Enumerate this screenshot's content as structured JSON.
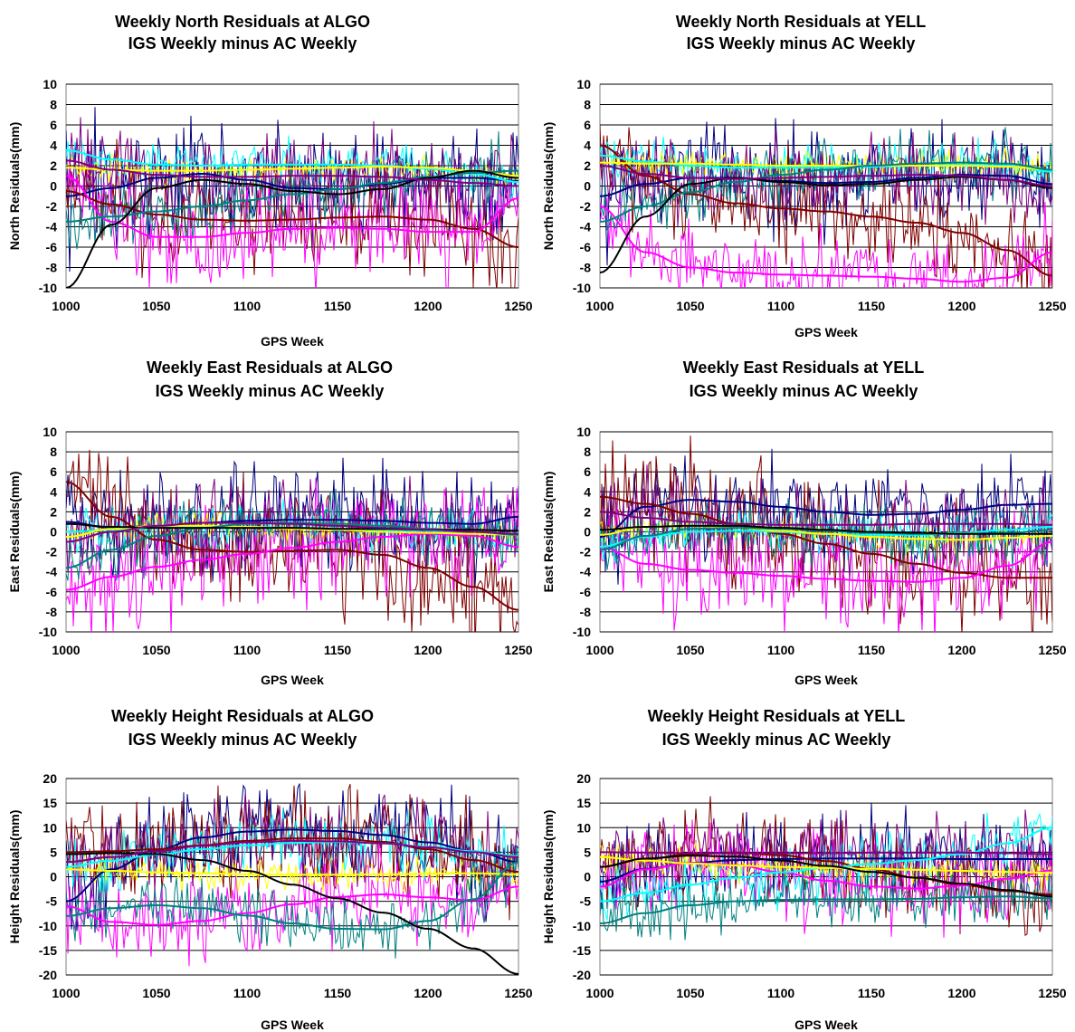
{
  "series_colors": [
    "#000080",
    "#800000",
    "#ff00ff",
    "#00ffff",
    "#ffff00",
    "#008080",
    "#000000",
    "#800080"
  ],
  "chart_data": [
    {
      "type": "line",
      "title_lines": [
        "Weekly North Residuals at ALGO",
        "IGS Weekly minus AC Weekly"
      ],
      "xlabel": "GPS Week",
      "ylabel": "North Residuals(mm)",
      "xlim": [
        1000,
        1250
      ],
      "ylim": [
        -10,
        10
      ],
      "xticks": [
        1000,
        1050,
        1100,
        1150,
        1200,
        1250
      ],
      "yticks": [
        -10,
        -8,
        -6,
        -4,
        -2,
        0,
        2,
        4,
        6,
        8,
        10
      ],
      "grid": "horizontal",
      "x": [
        1000,
        1025,
        1050,
        1075,
        1100,
        1125,
        1150,
        1175,
        1200,
        1225,
        1250
      ],
      "series": [
        {
          "color": "#000080",
          "values": [
            -1.0,
            -0.2,
            0.8,
            1.2,
            0.6,
            -0.2,
            -0.3,
            0.2,
            0.8,
            0.8,
            0.5
          ],
          "noise": 3.0
        },
        {
          "color": "#800000",
          "values": [
            -0.5,
            -1.8,
            -2.8,
            -3.3,
            -3.4,
            -3.3,
            -3.1,
            -3.0,
            -3.3,
            -4.2,
            -6.0
          ],
          "noise": 2.5
        },
        {
          "color": "#ff00ff",
          "values": [
            1.0,
            -3.5,
            -5.0,
            -5.0,
            -4.6,
            -4.2,
            -4.1,
            -4.2,
            -4.5,
            -4.5,
            -1.2
          ],
          "noise": 2.5
        },
        {
          "color": "#00ffff",
          "values": [
            3.5,
            2.6,
            2.1,
            2.0,
            2.1,
            2.1,
            2.1,
            2.0,
            1.7,
            1.2,
            0.4
          ],
          "noise": 1.0
        },
        {
          "color": "#ffff00",
          "values": [
            1.8,
            1.6,
            1.5,
            1.5,
            1.6,
            1.7,
            1.8,
            1.9,
            1.8,
            1.5,
            1.0
          ],
          "noise": 0.6
        },
        {
          "color": "#008080",
          "values": [
            -3.5,
            -3.0,
            -2.5,
            -2.0,
            -1.4,
            -0.8,
            -0.3,
            0.3,
            0.9,
            1.3,
            1.5
          ],
          "noise": 1.5
        },
        {
          "color": "#000000",
          "values": [
            -10.0,
            -3.8,
            -0.2,
            0.6,
            0.2,
            -0.5,
            -0.8,
            -0.3,
            0.8,
            1.5,
            0.8
          ],
          "noise": 0
        },
        {
          "color": "#800080",
          "values": [
            2.5,
            1.6,
            1.1,
            0.9,
            0.9,
            1.0,
            1.0,
            0.9,
            0.6,
            0.3,
            0.0
          ],
          "noise": 2.0
        }
      ]
    },
    {
      "type": "line",
      "title_lines": [
        "Weekly North Residuals at YELL",
        "IGS Weekly minus AC Weekly"
      ],
      "xlabel": "GPS Week",
      "ylabel": "North Residuals(mm)",
      "xlim": [
        1000,
        1250
      ],
      "ylim": [
        -10,
        10
      ],
      "xticks": [
        1000,
        1050,
        1100,
        1150,
        1200,
        1250
      ],
      "yticks": [
        -10,
        -8,
        -6,
        -4,
        -2,
        0,
        2,
        4,
        6,
        8,
        10
      ],
      "grid": "horizontal",
      "x": [
        1000,
        1025,
        1050,
        1075,
        1100,
        1125,
        1150,
        1175,
        1200,
        1225,
        1250
      ],
      "series": [
        {
          "color": "#000080",
          "values": [
            -1.0,
            0.2,
            0.8,
            0.8,
            0.5,
            0.3,
            0.4,
            0.8,
            1.1,
            1.0,
            0.2
          ],
          "noise": 2.5
        },
        {
          "color": "#800000",
          "values": [
            4.0,
            1.0,
            -0.8,
            -1.7,
            -2.2,
            -2.5,
            -3.0,
            -3.6,
            -4.6,
            -6.3,
            -8.8
          ],
          "noise": 2.5
        },
        {
          "color": "#ff00ff",
          "values": [
            -2.0,
            -6.5,
            -8.0,
            -8.5,
            -8.7,
            -8.8,
            -8.9,
            -9.1,
            -9.4,
            -9.0,
            -6.5
          ],
          "noise": 2.0
        },
        {
          "color": "#00ffff",
          "values": [
            3.0,
            2.4,
            2.0,
            1.8,
            1.8,
            1.8,
            1.9,
            2.0,
            2.1,
            2.0,
            1.4
          ],
          "noise": 1.0
        },
        {
          "color": "#ffff00",
          "values": [
            2.3,
            2.2,
            2.2,
            2.1,
            2.0,
            2.0,
            2.0,
            2.0,
            2.0,
            1.9,
            1.6
          ],
          "noise": 0.7
        },
        {
          "color": "#008080",
          "values": [
            -3.5,
            -2.0,
            -0.6,
            0.4,
            1.1,
            1.6,
            2.0,
            2.2,
            2.3,
            2.2,
            1.6
          ],
          "noise": 1.5
        },
        {
          "color": "#000000",
          "values": [
            -8.5,
            -3.0,
            0.2,
            0.8,
            0.4,
            0.1,
            0.2,
            0.6,
            0.9,
            0.6,
            -0.2
          ],
          "noise": 0
        },
        {
          "color": "#800080",
          "values": [
            2.0,
            1.2,
            0.8,
            0.7,
            0.8,
            0.9,
            1.0,
            1.1,
            1.0,
            0.6,
            0.0
          ],
          "noise": 2.0
        }
      ]
    },
    {
      "type": "line",
      "title_lines": [
        "Weekly East Residuals at ALGO",
        "IGS Weekly minus AC Weekly"
      ],
      "xlabel": "GPS Week",
      "ylabel": "East Residuals(mm)",
      "xlim": [
        1000,
        1250
      ],
      "ylim": [
        -10,
        10
      ],
      "xticks": [
        1000,
        1050,
        1100,
        1150,
        1200,
        1250
      ],
      "yticks": [
        -10,
        -8,
        -6,
        -4,
        -2,
        0,
        2,
        4,
        6,
        8,
        10
      ],
      "grid": "horizontal",
      "x": [
        1000,
        1025,
        1050,
        1075,
        1100,
        1125,
        1150,
        1175,
        1200,
        1225,
        1250
      ],
      "series": [
        {
          "color": "#000080",
          "values": [
            1.0,
            0.4,
            0.6,
            0.9,
            1.1,
            1.2,
            1.2,
            1.1,
            0.9,
            0.8,
            1.5
          ],
          "noise": 2.5
        },
        {
          "color": "#800000",
          "values": [
            5.0,
            1.5,
            -0.8,
            -1.8,
            -2.0,
            -1.9,
            -1.8,
            -2.3,
            -3.6,
            -5.5,
            -7.8
          ],
          "noise": 3.0
        },
        {
          "color": "#ff00ff",
          "values": [
            -5.8,
            -4.5,
            -3.5,
            -2.8,
            -2.2,
            -1.6,
            -1.0,
            -0.5,
            -0.2,
            -0.4,
            -1.5
          ],
          "noise": 2.5
        },
        {
          "color": "#00ffff",
          "values": [
            0.0,
            0.2,
            0.4,
            0.5,
            0.5,
            0.4,
            0.3,
            0.2,
            0.1,
            0.0,
            -0.2
          ],
          "noise": 1.0
        },
        {
          "color": "#ffff00",
          "values": [
            -0.5,
            0.3,
            0.6,
            0.6,
            0.5,
            0.3,
            0.2,
            0.0,
            -0.1,
            -0.2,
            -0.3
          ],
          "noise": 0.6
        },
        {
          "color": "#008080",
          "values": [
            -3.6,
            -1.8,
            -0.4,
            0.4,
            0.8,
            0.9,
            0.8,
            0.6,
            0.3,
            0.0,
            -0.3
          ],
          "noise": 1.5
        },
        {
          "color": "#000000",
          "values": [
            0.8,
            0.5,
            0.4,
            0.4,
            0.4,
            0.4,
            0.3,
            0.3,
            0.2,
            0.2,
            0.1
          ],
          "noise": 0
        },
        {
          "color": "#800080",
          "values": [
            -1.0,
            0.0,
            0.6,
            0.9,
            0.9,
            0.8,
            0.6,
            0.4,
            0.2,
            0.0,
            -0.2
          ],
          "noise": 2.0
        }
      ]
    },
    {
      "type": "line",
      "title_lines": [
        "Weekly East Residuals at YELL",
        "IGS Weekly minus AC Weekly"
      ],
      "xlabel": "GPS Week",
      "ylabel": "East Residuals(mm)",
      "xlim": [
        1000,
        1250
      ],
      "ylim": [
        -10,
        10
      ],
      "xticks": [
        1000,
        1050,
        1100,
        1150,
        1200,
        1250
      ],
      "yticks": [
        -10,
        -8,
        -6,
        -4,
        -2,
        0,
        2,
        4,
        6,
        8,
        10
      ],
      "grid": "horizontal",
      "x": [
        1000,
        1025,
        1050,
        1075,
        1100,
        1125,
        1150,
        1175,
        1200,
        1225,
        1250
      ],
      "series": [
        {
          "color": "#000080",
          "values": [
            -0.5,
            2.5,
            3.2,
            3.0,
            2.5,
            2.0,
            1.7,
            1.8,
            2.2,
            2.7,
            2.8
          ],
          "noise": 2.5
        },
        {
          "color": "#800000",
          "values": [
            3.5,
            2.8,
            1.8,
            0.8,
            -0.2,
            -1.2,
            -2.2,
            -3.2,
            -4.1,
            -4.6,
            -4.6
          ],
          "noise": 3.0
        },
        {
          "color": "#ff00ff",
          "values": [
            -1.5,
            -3.2,
            -3.8,
            -4.1,
            -4.4,
            -4.7,
            -4.9,
            -5.0,
            -4.6,
            -3.4,
            -1.0
          ],
          "noise": 2.5
        },
        {
          "color": "#00ffff",
          "values": [
            -1.5,
            -0.5,
            0.0,
            0.1,
            0.0,
            -0.2,
            -0.3,
            -0.3,
            -0.1,
            0.2,
            0.5
          ],
          "noise": 1.0
        },
        {
          "color": "#ffff00",
          "values": [
            -0.3,
            0.5,
            0.6,
            0.4,
            0.1,
            -0.2,
            -0.5,
            -0.7,
            -0.8,
            -0.6,
            -0.4
          ],
          "noise": 0.6
        },
        {
          "color": "#008080",
          "values": [
            -1.8,
            -0.4,
            0.3,
            0.4,
            0.3,
            0.1,
            -0.1,
            -0.2,
            -0.2,
            -0.1,
            0.2
          ],
          "noise": 1.5
        },
        {
          "color": "#000000",
          "values": [
            0.2,
            0.5,
            0.6,
            0.6,
            0.4,
            0.2,
            0.0,
            -0.1,
            -0.2,
            -0.2,
            -0.2
          ],
          "noise": 0
        },
        {
          "color": "#800080",
          "values": [
            2.0,
            1.4,
            1.0,
            0.8,
            0.7,
            0.7,
            0.7,
            0.8,
            0.8,
            0.8,
            0.7
          ],
          "noise": 2.0
        }
      ]
    },
    {
      "type": "line",
      "title_lines": [
        "Weekly Height Residuals at ALGO",
        "IGS Weekly minus AC Weekly"
      ],
      "xlabel": "GPS Week",
      "ylabel": "Height Residuals(mm)",
      "xlim": [
        1000,
        1250
      ],
      "ylim": [
        -20,
        20
      ],
      "xticks": [
        1000,
        1050,
        1100,
        1150,
        1200,
        1250
      ],
      "yticks": [
        -20,
        -15,
        -10,
        -5,
        0,
        5,
        10,
        15,
        20
      ],
      "grid": "horizontal",
      "x": [
        1000,
        1025,
        1050,
        1075,
        1100,
        1125,
        1150,
        1175,
        1200,
        1225,
        1250
      ],
      "series": [
        {
          "color": "#000080",
          "values": [
            -5.0,
            1.5,
            5.5,
            8.0,
            9.2,
            9.6,
            9.3,
            8.5,
            7.0,
            5.2,
            3.0
          ],
          "noise": 5.0
        },
        {
          "color": "#800000",
          "values": [
            5.0,
            5.2,
            5.6,
            6.4,
            7.3,
            7.8,
            7.8,
            7.1,
            5.6,
            3.4,
            1.0
          ],
          "noise": 5.0
        },
        {
          "color": "#ff00ff",
          "values": [
            -6.0,
            -9.2,
            -9.8,
            -9.0,
            -7.4,
            -5.6,
            -4.1,
            -3.6,
            -4.2,
            -4.8,
            -2.0
          ],
          "noise": 4.5
        },
        {
          "color": "#00ffff",
          "values": [
            2.0,
            3.3,
            4.5,
            5.6,
            6.4,
            6.9,
            7.1,
            6.8,
            6.1,
            5.2,
            4.2
          ],
          "noise": 3.0
        },
        {
          "color": "#ffff00",
          "values": [
            1.5,
            1.2,
            0.9,
            0.7,
            0.5,
            0.4,
            0.4,
            0.5,
            0.6,
            0.7,
            0.5
          ],
          "noise": 1.5
        },
        {
          "color": "#008080",
          "values": [
            -8.0,
            -6.4,
            -5.8,
            -6.4,
            -7.9,
            -9.5,
            -10.6,
            -10.7,
            -9.0,
            -4.6,
            3.0
          ],
          "noise": 3.0
        },
        {
          "color": "#000000",
          "values": [
            4.6,
            4.8,
            4.6,
            3.4,
            1.2,
            -1.6,
            -4.4,
            -7.3,
            -10.6,
            -14.6,
            -19.8
          ],
          "noise": 0
        },
        {
          "color": "#800080",
          "values": [
            3.0,
            4.0,
            5.2,
            6.3,
            7.0,
            7.3,
            7.2,
            6.8,
            6.0,
            5.0,
            4.0
          ],
          "noise": 4.0
        }
      ]
    },
    {
      "type": "line",
      "title_lines": [
        "Weekly Height Residuals at YELL",
        "IGS Weekly minus AC Weekly"
      ],
      "xlabel": "GPS Week",
      "ylabel": "Height Residuals(mm)",
      "xlim": [
        1000,
        1250
      ],
      "ylim": [
        -20,
        20
      ],
      "xticks": [
        1000,
        1050,
        1100,
        1150,
        1200,
        1250
      ],
      "yticks": [
        -20,
        -15,
        -10,
        -5,
        0,
        5,
        10,
        15,
        20
      ],
      "grid": "horizontal",
      "x": [
        1000,
        1025,
        1050,
        1075,
        1100,
        1125,
        1150,
        1175,
        1200,
        1225,
        1250
      ],
      "series": [
        {
          "color": "#000080",
          "values": [
            -1.0,
            1.6,
            2.8,
            3.4,
            3.6,
            3.7,
            3.7,
            3.7,
            3.6,
            3.6,
            3.6
          ],
          "noise": 4.0
        },
        {
          "color": "#800000",
          "values": [
            2.0,
            3.6,
            4.6,
            4.9,
            4.4,
            3.2,
            1.6,
            -0.2,
            -1.7,
            -2.9,
            -3.6
          ],
          "noise": 4.5
        },
        {
          "color": "#ff00ff",
          "values": [
            -2.0,
            1.5,
            2.8,
            2.4,
            0.9,
            -0.8,
            -2.0,
            -2.4,
            -1.8,
            -0.4,
            1.3
          ],
          "noise": 4.5
        },
        {
          "color": "#00ffff",
          "values": [
            -5.0,
            -3.3,
            -1.6,
            -0.2,
            0.9,
            1.8,
            2.6,
            3.4,
            4.6,
            6.8,
            10.0
          ],
          "noise": 3.0
        },
        {
          "color": "#ffff00",
          "values": [
            4.0,
            3.3,
            2.7,
            2.3,
            2.0,
            1.8,
            1.6,
            1.4,
            1.2,
            1.0,
            0.8
          ],
          "noise": 1.5
        },
        {
          "color": "#008080",
          "values": [
            -9.5,
            -7.4,
            -5.8,
            -5.0,
            -4.7,
            -4.6,
            -4.6,
            -4.5,
            -4.2,
            -4.0,
            -4.4
          ],
          "noise": 3.0
        },
        {
          "color": "#000000",
          "values": [
            2.0,
            3.7,
            4.3,
            4.1,
            3.3,
            2.2,
            1.0,
            -0.2,
            -1.4,
            -2.7,
            -4.0
          ],
          "noise": 0
        },
        {
          "color": "#800080",
          "values": [
            5.0,
            4.9,
            4.8,
            4.8,
            4.8,
            4.8,
            4.9,
            4.9,
            4.9,
            4.8,
            4.6
          ],
          "noise": 3.5
        }
      ]
    }
  ]
}
